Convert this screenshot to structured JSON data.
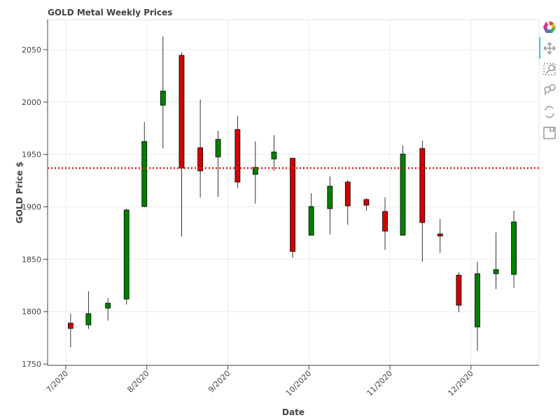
{
  "chart_data": {
    "type": "candlestick",
    "title": "GOLD Metal Weekly Prices",
    "x_label": "Date",
    "y_label": "GOLD Price $",
    "x": [
      7.06,
      7.28,
      7.52,
      7.75,
      7.97,
      8.2,
      8.43,
      8.66,
      8.88,
      9.12,
      9.34,
      9.57,
      9.8,
      10.03,
      10.26,
      10.48,
      10.71,
      10.94,
      11.16,
      11.4,
      11.62,
      11.85,
      12.08,
      12.31,
      12.53
    ],
    "open": [
      1789,
      1787.4,
      1803.4,
      1812,
      1900.3,
      1997,
      2044.6,
      1956.4,
      1947.7,
      1973.8,
      1931,
      1945.7,
      1946.4,
      1872.9,
      1898.3,
      1923.7,
      1907,
      1895.6,
      1872.9,
      1955.7,
      1874.2,
      1834.8,
      1785.4,
      1836.2,
      1835.5
    ],
    "high": [
      1798.1,
      1819.5,
      1812.8,
      1898.3,
      1981,
      2062.6,
      2047.3,
      2002.5,
      1972.4,
      1986.5,
      1962.4,
      1968.4,
      1946.4,
      1913,
      1929,
      1925.7,
      1908.3,
      1909,
      1958.4,
      1963,
      1888.3,
      1837.5,
      1847.5,
      1875.6,
      1896.3
    ],
    "low": [
      1766,
      1783.4,
      1791.4,
      1806.8,
      1899.6,
      1955.7,
      1871.6,
      1909,
      1909.7,
      1918.3,
      1903,
      1934.4,
      1851.5,
      1873,
      1873.6,
      1882.9,
      1896.3,
      1858.9,
      1872.9,
      1847.5,
      1856.2,
      1799.4,
      1762.7,
      1821.5,
      1822.8
    ],
    "close": [
      1784,
      1798.1,
      1808.1,
      1897,
      1962.4,
      2010.5,
      1937,
      1934.4,
      1964.4,
      1923.7,
      1937.7,
      1952.4,
      1857.5,
      1900.3,
      1919.7,
      1901,
      1901.6,
      1876.9,
      1950.4,
      1885,
      1872.2,
      1806.1,
      1836.2,
      1840.2,
      1885.6
    ],
    "increasing_color": "#008000",
    "decreasing_color": "#d40000",
    "hline": {
      "value": 1937,
      "color": "#e31a1c",
      "style": "dotted"
    },
    "xlim": [
      6.776,
      12.84
    ],
    "xticks": [
      {
        "value": 7,
        "label": "7/2020"
      },
      {
        "value": 8,
        "label": "8/2020"
      },
      {
        "value": 9,
        "label": "9/2020"
      },
      {
        "value": 10,
        "label": "10/2020"
      },
      {
        "value": 11,
        "label": "11/2020"
      },
      {
        "value": 12,
        "label": "12/2020"
      }
    ],
    "ylim": [
      1748.7,
      2078.7
    ],
    "yticks": [
      1750,
      1800,
      1850,
      1900,
      1950,
      2000,
      2050
    ],
    "grid": true
  }
}
